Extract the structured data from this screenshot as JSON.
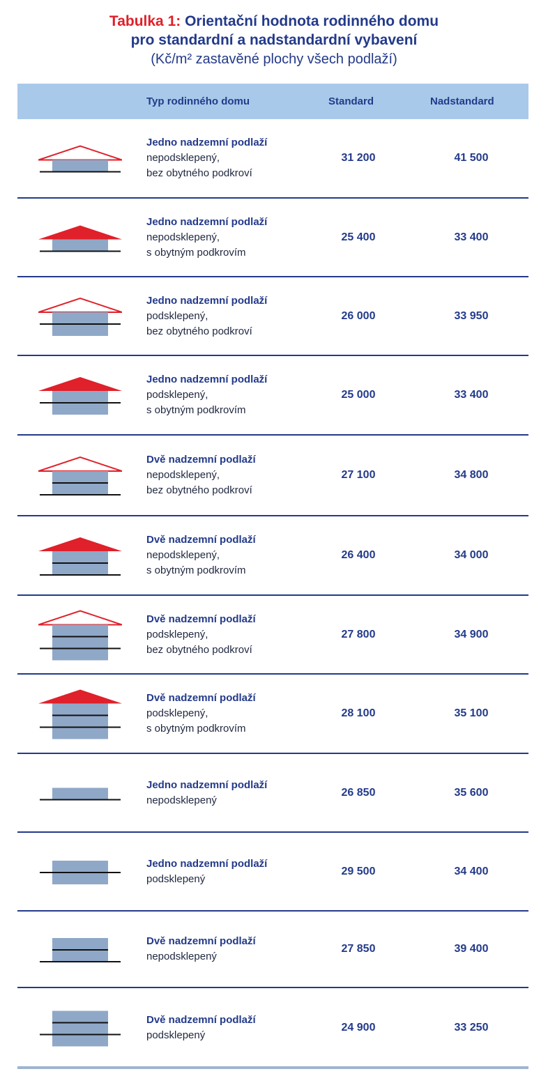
{
  "title": {
    "prefix": "Tabulka 1:",
    "line1": "Orientační hodnota rodinného domu",
    "line2": "pro standardní a nadstandardní vybavení",
    "line3": "(Kč/m² zastavěné plochy všech podlaží)"
  },
  "header": {
    "col_type": "Typ rodinného domu",
    "col_standard": "Standard",
    "col_nadstandard": "Nadstandard"
  },
  "colors": {
    "accent_red": "#e0202a",
    "navy": "#233a8a",
    "header_bg": "#a9c9ea",
    "house_fill": "#8fa8c8"
  },
  "rows": [
    {
      "icon": "house-1floor-no-basement-roof-outline-icon",
      "title": "Jedno nadzemní podlaží",
      "sub1": "nepodsklepený,",
      "sub2": "bez obytného podkroví",
      "standard": "31 200",
      "nadstandard": "41 500"
    },
    {
      "icon": "house-1floor-no-basement-roof-filled-icon",
      "title": "Jedno nadzemní podlaží",
      "sub1": "nepodsklepený,",
      "sub2": "s obytným podkrovím",
      "standard": "25 400",
      "nadstandard": "33 400"
    },
    {
      "icon": "house-1floor-basement-roof-outline-icon",
      "title": "Jedno nadzemní podlaží",
      "sub1": "podsklepený,",
      "sub2": "bez obytného podkroví",
      "standard": "26 000",
      "nadstandard": "33 950"
    },
    {
      "icon": "house-1floor-basement-roof-filled-icon",
      "title": "Jedno nadzemní podlaží",
      "sub1": "podsklepený,",
      "sub2": "s obytným podkrovím",
      "standard": "25 000",
      "nadstandard": "33 400"
    },
    {
      "icon": "house-2floors-no-basement-roof-outline-icon",
      "title": "Dvě nadzemní podlaží",
      "sub1": "nepodsklepený,",
      "sub2": "bez obytného podkroví",
      "standard": "27 100",
      "nadstandard": "34 800"
    },
    {
      "icon": "house-2floors-no-basement-roof-filled-icon",
      "title": "Dvě nadzemní podlaží",
      "sub1": "nepodsklepený,",
      "sub2": "s obytným podkrovím",
      "standard": "26 400",
      "nadstandard": "34 000"
    },
    {
      "icon": "house-2floors-basement-roof-outline-icon",
      "title": "Dvě nadzemní podlaží",
      "sub1": "podsklepený,",
      "sub2": "bez obytného podkroví",
      "standard": "27 800",
      "nadstandard": "34 900"
    },
    {
      "icon": "house-2floors-basement-roof-filled-icon",
      "title": "Dvě nadzemní podlaží",
      "sub1": "podsklepený,",
      "sub2": "s obytným podkrovím",
      "standard": "28 100",
      "nadstandard": "35 100"
    },
    {
      "icon": "house-1floor-no-basement-flat-icon",
      "title": "Jedno nadzemní podlaží",
      "sub1": "nepodsklepený",
      "sub2": "",
      "standard": "26 850",
      "nadstandard": "35 600"
    },
    {
      "icon": "house-1floor-basement-flat-icon",
      "title": "Jedno nadzemní podlaží",
      "sub1": "podsklepený",
      "sub2": "",
      "standard": "29 500",
      "nadstandard": "34 400"
    },
    {
      "icon": "house-2floors-no-basement-flat-icon",
      "title": "Dvě nadzemní podlaží",
      "sub1": "nepodsklepený",
      "sub2": "",
      "standard": "27 850",
      "nadstandard": "39 400"
    },
    {
      "icon": "house-2floors-basement-flat-icon",
      "title": "Dvě nadzemní podlaží",
      "sub1": "podsklepený",
      "sub2": "",
      "standard": "24 900",
      "nadstandard": "33 250"
    }
  ]
}
